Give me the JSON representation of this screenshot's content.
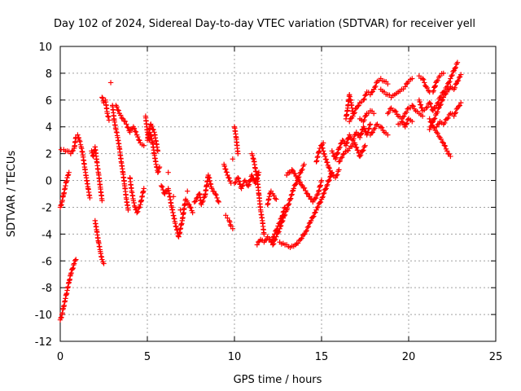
{
  "chart_data": {
    "type": "scatter",
    "title": "Day 102 of 2024, Sidereal Day-to-day VTEC variation (SDTVAR) for receiver yell",
    "xlabel": "GPS time / hours",
    "ylabel": "SDTVAR / TECUs",
    "xlim": [
      0,
      25
    ],
    "ylim": [
      -12,
      10
    ],
    "xticks": [
      0,
      5,
      10,
      15,
      20,
      25
    ],
    "yticks": [
      -12,
      -10,
      -8,
      -6,
      -4,
      -2,
      0,
      2,
      4,
      6,
      8,
      10
    ],
    "grid": true,
    "marker": "+",
    "color": "#ff0000",
    "series": [
      {
        "name": "SDTVAR",
        "points": [
          [
            0.0,
            -10.4
          ],
          [
            0.1,
            -10.0
          ],
          [
            0.2,
            -9.4
          ],
          [
            0.3,
            -8.8
          ],
          [
            0.4,
            -8.2
          ],
          [
            0.5,
            -7.6
          ],
          [
            0.6,
            -7.0
          ],
          [
            0.7,
            -6.6
          ],
          [
            0.8,
            -6.2
          ],
          [
            0.9,
            -5.9
          ],
          [
            0.0,
            -2.0
          ],
          [
            0.1,
            -1.6
          ],
          [
            0.2,
            -1.0
          ],
          [
            0.3,
            -0.4
          ],
          [
            0.4,
            0.2
          ],
          [
            0.5,
            0.6
          ],
          [
            0.05,
            2.3
          ],
          [
            0.2,
            2.3
          ],
          [
            0.4,
            2.2
          ],
          [
            0.6,
            2.0
          ],
          [
            0.8,
            2.4
          ],
          [
            0.9,
            3.2
          ],
          [
            1.0,
            3.4
          ],
          [
            1.1,
            3.0
          ],
          [
            1.2,
            2.5
          ],
          [
            1.3,
            1.9
          ],
          [
            1.4,
            1.0
          ],
          [
            1.5,
            0.2
          ],
          [
            1.6,
            -0.6
          ],
          [
            1.7,
            -1.3
          ],
          [
            1.8,
            2.2
          ],
          [
            1.9,
            1.8
          ],
          [
            2.0,
            2.5
          ],
          [
            2.1,
            1.4
          ],
          [
            2.2,
            0.5
          ],
          [
            2.3,
            -0.5
          ],
          [
            2.4,
            -1.5
          ],
          [
            2.0,
            -3.0
          ],
          [
            2.1,
            -3.8
          ],
          [
            2.2,
            -4.6
          ],
          [
            2.3,
            -5.3
          ],
          [
            2.4,
            -5.9
          ],
          [
            2.5,
            -6.2
          ],
          [
            2.4,
            6.2
          ],
          [
            2.5,
            5.8
          ],
          [
            2.6,
            6.0
          ],
          [
            2.7,
            5.0
          ],
          [
            2.8,
            4.5
          ],
          [
            2.9,
            7.3
          ],
          [
            3.0,
            5.6
          ],
          [
            3.1,
            4.5
          ],
          [
            3.2,
            3.8
          ],
          [
            3.3,
            3.2
          ],
          [
            3.4,
            2.4
          ],
          [
            3.5,
            1.4
          ],
          [
            3.6,
            0.6
          ],
          [
            3.7,
            -0.4
          ],
          [
            3.8,
            -1.4
          ],
          [
            3.9,
            -2.2
          ],
          [
            3.2,
            5.6
          ],
          [
            3.4,
            5.0
          ],
          [
            3.6,
            4.6
          ],
          [
            3.8,
            4.2
          ],
          [
            4.0,
            3.6
          ],
          [
            4.2,
            4.0
          ],
          [
            4.4,
            3.4
          ],
          [
            4.6,
            2.8
          ],
          [
            4.8,
            2.6
          ],
          [
            4.0,
            0.2
          ],
          [
            4.1,
            -0.8
          ],
          [
            4.2,
            -1.5
          ],
          [
            4.3,
            -2.0
          ],
          [
            4.4,
            -2.4
          ],
          [
            4.6,
            -1.8
          ],
          [
            4.8,
            -0.6
          ],
          [
            4.9,
            4.8
          ],
          [
            5.0,
            3.6
          ],
          [
            5.1,
            3.0
          ],
          [
            5.2,
            3.4
          ],
          [
            5.3,
            2.8
          ],
          [
            5.4,
            2.0
          ],
          [
            5.5,
            1.2
          ],
          [
            5.6,
            0.6
          ],
          [
            5.7,
            1.0
          ],
          [
            5.0,
            3.0
          ],
          [
            5.2,
            4.2
          ],
          [
            5.4,
            3.6
          ],
          [
            5.6,
            2.2
          ],
          [
            5.8,
            -0.4
          ],
          [
            6.0,
            -1.0
          ],
          [
            6.2,
            -0.6
          ],
          [
            6.4,
            -2.0
          ],
          [
            6.6,
            -3.2
          ],
          [
            6.8,
            -4.2
          ],
          [
            7.0,
            -3.0
          ],
          [
            7.2,
            -1.4
          ],
          [
            7.4,
            -1.8
          ],
          [
            7.6,
            -2.4
          ],
          [
            6.2,
            0.6
          ],
          [
            6.5,
            -1.2
          ],
          [
            6.9,
            -2.2
          ],
          [
            7.3,
            -0.8
          ],
          [
            7.7,
            -1.6
          ],
          [
            8.0,
            -1.0
          ],
          [
            8.1,
            -1.8
          ],
          [
            8.3,
            -1.2
          ],
          [
            8.5,
            0.4
          ],
          [
            8.7,
            -0.6
          ],
          [
            8.9,
            -1.0
          ],
          [
            9.1,
            -1.6
          ],
          [
            9.4,
            1.2
          ],
          [
            9.6,
            0.4
          ],
          [
            9.8,
            -0.2
          ],
          [
            9.9,
            1.6
          ],
          [
            10.0,
            4.0
          ],
          [
            10.1,
            3.2
          ],
          [
            10.2,
            2.0
          ],
          [
            9.5,
            -2.6
          ],
          [
            9.6,
            -2.8
          ],
          [
            9.7,
            -3.0
          ],
          [
            9.8,
            -3.4
          ],
          [
            9.9,
            -3.6
          ],
          [
            10.0,
            -0.2
          ],
          [
            10.2,
            0.2
          ],
          [
            10.4,
            -0.6
          ],
          [
            10.6,
            0.0
          ],
          [
            10.8,
            -0.4
          ],
          [
            11.0,
            0.4
          ],
          [
            11.2,
            -0.2
          ],
          [
            11.4,
            0.6
          ],
          [
            11.0,
            2.0
          ],
          [
            11.1,
            1.6
          ],
          [
            11.2,
            0.9
          ],
          [
            11.3,
            0.2
          ],
          [
            11.4,
            -1.0
          ],
          [
            11.5,
            -2.2
          ],
          [
            11.6,
            -3.0
          ],
          [
            11.7,
            -4.0
          ],
          [
            11.3,
            -4.8
          ],
          [
            11.5,
            -4.4
          ],
          [
            11.7,
            -4.6
          ],
          [
            11.9,
            -4.2
          ],
          [
            12.1,
            -4.6
          ],
          [
            12.3,
            -4.0
          ],
          [
            12.5,
            -3.4
          ],
          [
            12.7,
            -2.8
          ],
          [
            12.9,
            -2.0
          ],
          [
            11.9,
            -1.8
          ],
          [
            12.0,
            -1.2
          ],
          [
            12.1,
            -0.8
          ],
          [
            12.2,
            -1.0
          ],
          [
            12.4,
            -1.4
          ],
          [
            12.2,
            -4.8
          ],
          [
            12.4,
            -4.2
          ],
          [
            12.6,
            -3.6
          ],
          [
            12.8,
            -2.8
          ],
          [
            13.0,
            -2.2
          ],
          [
            13.2,
            -1.4
          ],
          [
            13.4,
            -0.6
          ],
          [
            13.6,
            0.0
          ],
          [
            13.8,
            0.6
          ],
          [
            14.0,
            1.2
          ],
          [
            12.6,
            -4.6
          ],
          [
            12.9,
            -4.8
          ],
          [
            13.2,
            -5.0
          ],
          [
            13.5,
            -4.8
          ],
          [
            13.8,
            -4.4
          ],
          [
            14.1,
            -3.8
          ],
          [
            14.4,
            -3.0
          ],
          [
            14.7,
            -2.2
          ],
          [
            15.0,
            -1.4
          ],
          [
            15.3,
            -0.4
          ],
          [
            15.6,
            0.6
          ],
          [
            13.0,
            0.4
          ],
          [
            13.3,
            0.8
          ],
          [
            13.6,
            0.2
          ],
          [
            13.9,
            -0.4
          ],
          [
            14.2,
            -1.0
          ],
          [
            14.5,
            -1.6
          ],
          [
            14.8,
            -1.0
          ],
          [
            15.0,
            0.0
          ],
          [
            15.0,
            2.6
          ],
          [
            15.2,
            1.8
          ],
          [
            15.4,
            1.0
          ],
          [
            15.6,
            0.4
          ],
          [
            15.8,
            0.2
          ],
          [
            16.0,
            0.8
          ],
          [
            14.7,
            1.4
          ],
          [
            14.9,
            2.4
          ],
          [
            15.1,
            2.8
          ],
          [
            15.6,
            2.2
          ],
          [
            15.8,
            1.6
          ],
          [
            16.0,
            2.4
          ],
          [
            16.2,
            3.0
          ],
          [
            16.4,
            2.6
          ],
          [
            16.6,
            3.4
          ],
          [
            16.8,
            3.0
          ],
          [
            17.0,
            3.6
          ],
          [
            17.2,
            3.2
          ],
          [
            17.4,
            4.0
          ],
          [
            17.6,
            3.4
          ],
          [
            17.8,
            4.2
          ],
          [
            16.0,
            1.4
          ],
          [
            16.3,
            2.0
          ],
          [
            16.6,
            2.4
          ],
          [
            16.9,
            2.8
          ],
          [
            17.2,
            1.8
          ],
          [
            17.5,
            2.6
          ],
          [
            16.4,
            4.6
          ],
          [
            16.5,
            5.4
          ],
          [
            16.6,
            6.4
          ],
          [
            16.7,
            5.8
          ],
          [
            16.8,
            5.0
          ],
          [
            16.6,
            4.4
          ],
          [
            16.8,
            4.8
          ],
          [
            17.0,
            5.4
          ],
          [
            17.2,
            5.8
          ],
          [
            17.4,
            6.0
          ],
          [
            17.6,
            6.6
          ],
          [
            17.8,
            6.4
          ],
          [
            18.0,
            6.8
          ],
          [
            18.2,
            7.4
          ],
          [
            18.4,
            7.6
          ],
          [
            18.6,
            7.4
          ],
          [
            18.8,
            7.2
          ],
          [
            17.2,
            4.6
          ],
          [
            17.4,
            4.4
          ],
          [
            17.6,
            5.0
          ],
          [
            17.8,
            5.2
          ],
          [
            18.0,
            5.0
          ],
          [
            17.8,
            3.4
          ],
          [
            18.0,
            3.8
          ],
          [
            18.2,
            4.2
          ],
          [
            18.4,
            4.0
          ],
          [
            18.6,
            3.6
          ],
          [
            18.8,
            3.4
          ],
          [
            18.4,
            6.8
          ],
          [
            18.6,
            6.6
          ],
          [
            18.8,
            6.4
          ],
          [
            19.0,
            6.2
          ],
          [
            19.2,
            6.4
          ],
          [
            19.4,
            6.6
          ],
          [
            19.6,
            6.8
          ],
          [
            19.8,
            7.0
          ],
          [
            20.0,
            7.4
          ],
          [
            20.2,
            7.6
          ],
          [
            18.8,
            5.0
          ],
          [
            19.0,
            5.4
          ],
          [
            19.2,
            5.2
          ],
          [
            19.4,
            4.8
          ],
          [
            19.6,
            4.6
          ],
          [
            19.8,
            5.0
          ],
          [
            20.0,
            5.4
          ],
          [
            20.2,
            5.6
          ],
          [
            20.4,
            5.2
          ],
          [
            20.6,
            5.0
          ],
          [
            20.8,
            4.8
          ],
          [
            19.4,
            4.2
          ],
          [
            19.6,
            4.4
          ],
          [
            19.8,
            4.0
          ],
          [
            20.0,
            4.6
          ],
          [
            20.2,
            4.4
          ],
          [
            20.6,
            7.8
          ],
          [
            20.8,
            7.6
          ],
          [
            21.0,
            7.0
          ],
          [
            21.2,
            6.6
          ],
          [
            21.4,
            6.6
          ],
          [
            21.6,
            7.4
          ],
          [
            21.8,
            7.8
          ],
          [
            22.0,
            8.0
          ],
          [
            20.6,
            6.0
          ],
          [
            20.8,
            5.2
          ],
          [
            21.0,
            5.4
          ],
          [
            21.2,
            5.8
          ],
          [
            21.4,
            5.2
          ],
          [
            21.6,
            5.6
          ],
          [
            21.8,
            6.2
          ],
          [
            22.0,
            6.6
          ],
          [
            22.2,
            7.0
          ],
          [
            22.4,
            7.6
          ],
          [
            22.6,
            8.2
          ],
          [
            22.8,
            8.8
          ],
          [
            21.2,
            4.6
          ],
          [
            21.4,
            4.0
          ],
          [
            21.6,
            3.6
          ],
          [
            21.8,
            3.2
          ],
          [
            22.0,
            2.8
          ],
          [
            22.2,
            2.2
          ],
          [
            22.4,
            1.8
          ],
          [
            21.2,
            3.8
          ],
          [
            21.4,
            4.4
          ],
          [
            21.6,
            5.0
          ],
          [
            21.8,
            5.6
          ],
          [
            22.0,
            6.2
          ],
          [
            22.2,
            6.6
          ],
          [
            22.4,
            7.0
          ],
          [
            22.6,
            6.8
          ],
          [
            22.8,
            7.4
          ],
          [
            23.0,
            7.9
          ],
          [
            21.6,
            4.0
          ],
          [
            21.8,
            4.4
          ],
          [
            22.0,
            4.2
          ],
          [
            22.2,
            4.6
          ],
          [
            22.4,
            5.0
          ],
          [
            22.6,
            4.8
          ],
          [
            22.8,
            5.4
          ],
          [
            23.0,
            5.8
          ]
        ]
      }
    ]
  }
}
